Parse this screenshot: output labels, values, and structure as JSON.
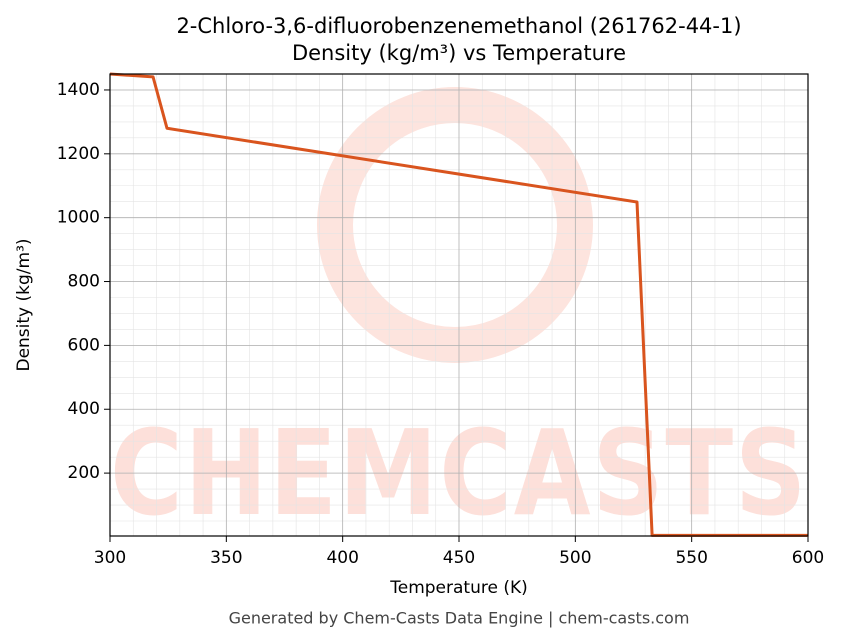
{
  "chart_data": {
    "type": "line",
    "title": "2-Chloro-3,6-difluorobenzenemethanol (261762-44-1)",
    "subtitle": "Density (kg/m³) vs Temperature",
    "x_label": "Temperature (K)",
    "y_label": "Density (kg/m³)",
    "footer": "Generated by Chem-Casts Data Engine | chem-casts.com",
    "watermark": "CHEMCASTS",
    "x": [
      300,
      318.5,
      324.5,
      526.5,
      533,
      600
    ],
    "series": [
      {
        "name": "Density",
        "color": "#d9541e",
        "values": [
          1450,
          1441,
          1280,
          1049,
          5,
          5
        ]
      }
    ],
    "xlim": [
      300,
      600
    ],
    "xticks": [
      300,
      350,
      400,
      450,
      500,
      550,
      600
    ],
    "ylim": [
      3,
      1450
    ],
    "yticks": [
      200,
      400,
      600,
      800,
      1000,
      1200,
      1400
    ],
    "grid": true
  }
}
